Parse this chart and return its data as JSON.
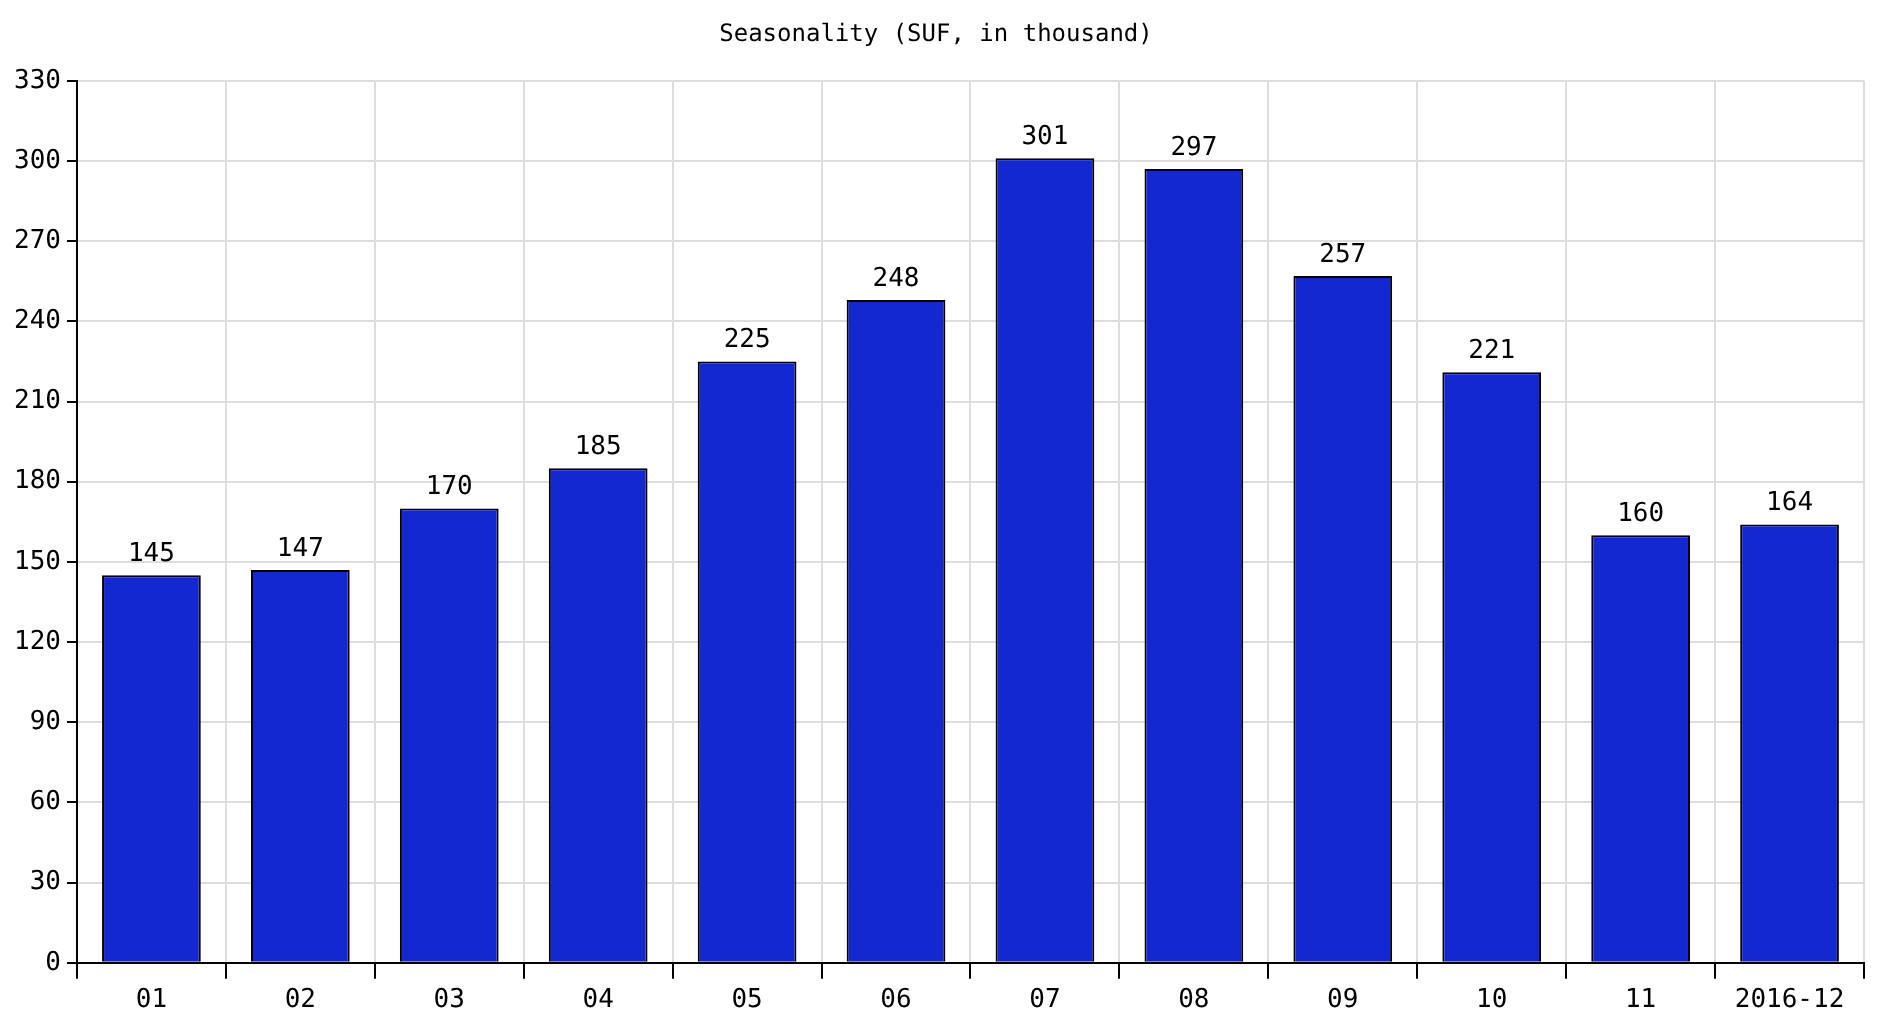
{
  "chart_data": {
    "type": "bar",
    "title": "Seasonality (SUF, in thousand)",
    "categories": [
      "01",
      "02",
      "03",
      "04",
      "05",
      "06",
      "07",
      "08",
      "09",
      "10",
      "11",
      "2016-12"
    ],
    "values": [
      145,
      147,
      170,
      185,
      225,
      248,
      301,
      297,
      257,
      221,
      160,
      164
    ],
    "color": "#1428d0",
    "ylim": [
      0,
      330
    ],
    "yticks": [
      0,
      30,
      60,
      90,
      120,
      150,
      180,
      210,
      240,
      270,
      300,
      330
    ],
    "grid": true,
    "data_labels": true
  }
}
